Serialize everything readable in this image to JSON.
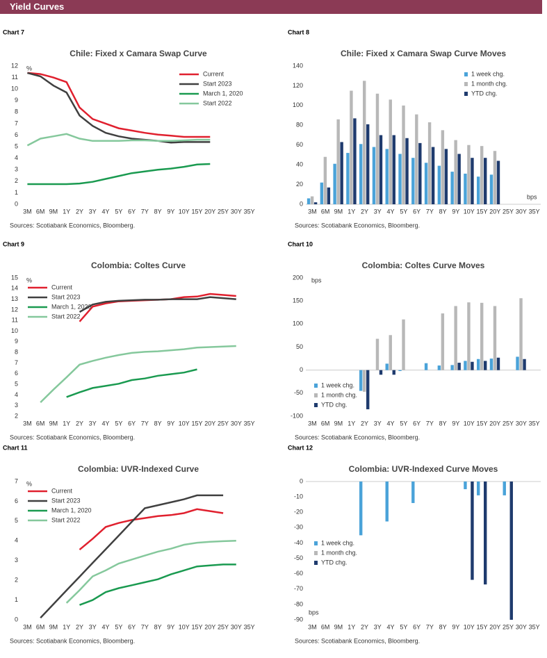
{
  "header": {
    "title": "Yield Curves"
  },
  "chart_data": [
    {
      "type": "line",
      "label": "Chart 7",
      "title": "Chile: Fixed x Camara Swap Curve",
      "source": "Sources: Scotiabank Economics, Bloomberg.",
      "unit": "%",
      "unit_position": "upper left",
      "legend": "upper right",
      "categories": [
        "3M",
        "6M",
        "9M",
        "1Y",
        "2Y",
        "3Y",
        "4Y",
        "5Y",
        "6Y",
        "7Y",
        "8Y",
        "9Y",
        "10Y",
        "15Y",
        "20Y",
        "25Y",
        "30Y",
        "35Y"
      ],
      "ylim": [
        0,
        12
      ],
      "yticks": [
        0,
        1,
        2,
        3,
        4,
        5,
        6,
        7,
        8,
        9,
        10,
        11,
        12
      ],
      "series": [
        {
          "name": "Current",
          "color": "#e0202e",
          "values": [
            11.4,
            11.3,
            11.0,
            10.6,
            8.4,
            7.4,
            7.0,
            6.6,
            6.4,
            6.2,
            6.05,
            5.95,
            5.85,
            5.85,
            5.85,
            null,
            null,
            null
          ]
        },
        {
          "name": "Start 2023",
          "color": "#404040",
          "values": [
            11.4,
            11.1,
            10.3,
            9.7,
            7.7,
            6.8,
            6.2,
            5.9,
            5.7,
            5.6,
            5.5,
            5.35,
            5.4,
            5.4,
            5.4,
            null,
            null,
            null
          ]
        },
        {
          "name": "March 1, 2020",
          "color": "#1a9a50",
          "values": [
            1.75,
            1.75,
            1.75,
            1.75,
            1.8,
            1.95,
            2.2,
            2.45,
            2.7,
            2.85,
            3.0,
            3.1,
            3.25,
            3.45,
            3.5,
            null,
            null,
            null
          ]
        },
        {
          "name": "Start 2022",
          "color": "#85c89c",
          "values": [
            5.1,
            5.7,
            5.9,
            6.1,
            5.7,
            5.5,
            5.5,
            5.5,
            5.55,
            5.55,
            5.5,
            5.5,
            5.55,
            5.6,
            5.6,
            null,
            null,
            null
          ]
        }
      ]
    },
    {
      "type": "bar",
      "label": "Chart 8",
      "title": "Chile: Fixed x Camara Swap Curve Moves",
      "source": "Sources: Scotiabank Economics, Bloomberg.",
      "unit": "bps",
      "unit_position": "lower right",
      "legend": "upper right",
      "categories": [
        "3M",
        "6M",
        "9M",
        "1Y",
        "2Y",
        "3Y",
        "4Y",
        "5Y",
        "6Y",
        "7Y",
        "8Y",
        "9Y",
        "10Y",
        "15Y",
        "20Y",
        "25Y",
        "30Y",
        "35Y"
      ],
      "ylim": [
        0,
        140
      ],
      "yticks": [
        0,
        20,
        40,
        60,
        80,
        100,
        120,
        140
      ],
      "series": [
        {
          "name": "1 week chg.",
          "color": "#4aa3d9",
          "values": [
            6,
            22,
            41,
            52,
            61,
            58,
            56,
            51,
            47,
            42,
            39,
            33,
            31,
            28,
            30,
            null,
            null,
            null
          ]
        },
        {
          "name": "1 month chg.",
          "color": "#b8b8b8",
          "values": [
            8,
            48,
            86,
            115,
            125,
            112,
            106,
            100,
            91,
            83,
            75,
            65,
            60,
            59,
            54,
            null,
            null,
            null
          ]
        },
        {
          "name": "YTD chg.",
          "color": "#1f3b6e",
          "values": [
            2,
            17,
            63,
            87,
            81,
            70,
            70,
            67,
            62,
            58,
            56,
            51,
            47,
            47,
            44,
            null,
            null,
            null
          ]
        }
      ]
    },
    {
      "type": "line",
      "label": "Chart 9",
      "title": "Colombia: Coltes Curve",
      "source": "Sources: Scotiabank Economics, Bloomberg.",
      "unit": "%",
      "unit_position": "upper left",
      "legend": "upper left",
      "categories": [
        "3M",
        "6M",
        "9M",
        "1Y",
        "2Y",
        "3Y",
        "4Y",
        "5Y",
        "6Y",
        "7Y",
        "8Y",
        "9Y",
        "10Y",
        "15Y",
        "20Y",
        "25Y",
        "30Y",
        "35Y"
      ],
      "ylim": [
        2,
        15
      ],
      "yticks": [
        2,
        3,
        4,
        5,
        6,
        7,
        8,
        9,
        10,
        11,
        12,
        13,
        14,
        15
      ],
      "series": [
        {
          "name": "Current",
          "color": "#e0202e",
          "values": [
            null,
            null,
            null,
            null,
            10.9,
            12.3,
            12.6,
            12.8,
            12.85,
            12.9,
            12.95,
            13.0,
            13.2,
            13.25,
            13.5,
            13.4,
            13.3,
            null
          ]
        },
        {
          "name": "Start 2023",
          "color": "#404040",
          "values": [
            null,
            null,
            null,
            null,
            11.8,
            12.5,
            12.75,
            12.85,
            12.9,
            12.95,
            12.95,
            13.0,
            13.0,
            13.0,
            13.2,
            13.1,
            13.0,
            null
          ]
        },
        {
          "name": "March 1, 2020",
          "color": "#1a9a50",
          "values": [
            null,
            null,
            null,
            3.8,
            4.25,
            4.65,
            4.85,
            5.05,
            5.4,
            5.55,
            5.8,
            5.95,
            6.1,
            6.4,
            null,
            null,
            null,
            null
          ]
        },
        {
          "name": "Start 2022",
          "color": "#85c89c",
          "values": [
            null,
            3.3,
            4.5,
            5.65,
            6.85,
            7.2,
            7.5,
            7.75,
            7.95,
            8.05,
            8.1,
            8.2,
            8.3,
            8.45,
            8.5,
            8.55,
            8.6,
            null
          ]
        }
      ]
    },
    {
      "type": "bar",
      "label": "Chart 10",
      "title": "Colombia: Coltes Curve Moves",
      "source": "Sources: Scotiabank Economics, Bloomberg.",
      "unit": "bps",
      "unit_position": "upper left",
      "legend": "lower left",
      "categories": [
        "3M",
        "6M",
        "9M",
        "1Y",
        "2Y",
        "3Y",
        "4Y",
        "5Y",
        "6Y",
        "7Y",
        "8Y",
        "9Y",
        "10Y",
        "15Y",
        "20Y",
        "25Y",
        "30Y",
        "35Y"
      ],
      "ylim": [
        -100,
        200
      ],
      "yticks": [
        -100,
        -50,
        0,
        50,
        100,
        150,
        200
      ],
      "series": [
        {
          "name": "1 week chg.",
          "color": "#4aa3d9",
          "values": [
            null,
            null,
            null,
            null,
            -45,
            null,
            14,
            -2,
            null,
            15,
            10,
            11,
            20,
            24,
            25,
            null,
            29,
            null
          ]
        },
        {
          "name": "1 month chg.",
          "color": "#b8b8b8",
          "values": [
            null,
            null,
            null,
            null,
            -47,
            68,
            76,
            110,
            null,
            null,
            123,
            139,
            147,
            146,
            139,
            null,
            156,
            null
          ]
        },
        {
          "name": "YTD chg.",
          "color": "#1f3b6e",
          "values": [
            null,
            null,
            null,
            null,
            -85,
            -10,
            -10,
            null,
            null,
            null,
            null,
            16,
            18,
            20,
            27,
            null,
            24,
            null
          ]
        }
      ]
    },
    {
      "type": "line",
      "label": "Chart 11",
      "title": "Colombia: UVR-Indexed Curve",
      "source": "Sources: Scotiabank Economics, Bloomberg.",
      "unit": "%",
      "unit_position": "upper left",
      "legend": "upper left",
      "categories": [
        "3M",
        "6M",
        "9M",
        "1Y",
        "2Y",
        "3Y",
        "4Y",
        "5Y",
        "6Y",
        "7Y",
        "8Y",
        "9Y",
        "10Y",
        "15Y",
        "20Y",
        "25Y",
        "30Y",
        "35Y"
      ],
      "ylim": [
        0,
        7
      ],
      "yticks": [
        0,
        1,
        2,
        3,
        4,
        5,
        6,
        7
      ],
      "series": [
        {
          "name": "Current",
          "color": "#e0202e",
          "values": [
            null,
            null,
            null,
            null,
            3.55,
            4.1,
            4.7,
            4.9,
            5.05,
            5.15,
            5.25,
            5.3,
            5.4,
            5.6,
            5.5,
            5.4,
            null,
            null
          ]
        },
        {
          "name": "Start 2023",
          "color": "#404040",
          "values": [
            null,
            0.1,
            0.79,
            1.49,
            2.18,
            2.88,
            3.57,
            4.26,
            4.96,
            5.65,
            5.8,
            5.95,
            6.1,
            6.3,
            6.3,
            6.3,
            null,
            null
          ]
        },
        {
          "name": "March 1, 2020",
          "color": "#1a9a50",
          "values": [
            null,
            null,
            null,
            null,
            0.75,
            1.0,
            1.4,
            1.6,
            1.75,
            1.9,
            2.05,
            2.3,
            2.5,
            2.7,
            2.75,
            2.8,
            2.8,
            null
          ]
        },
        {
          "name": "Start 2022",
          "color": "#85c89c",
          "values": [
            null,
            null,
            null,
            0.85,
            1.5,
            2.2,
            2.5,
            2.85,
            3.05,
            3.25,
            3.45,
            3.6,
            3.8,
            3.9,
            3.95,
            3.98,
            4.0,
            null
          ]
        }
      ]
    },
    {
      "type": "bar",
      "label": "Chart 12",
      "title": "Colombia: UVR-Indexed Curve Moves",
      "source": "Sources: Scotiabank Economics, Bloomberg.",
      "unit": "bps",
      "unit_position": "lower left",
      "legend": "lower left",
      "categories": [
        "3M",
        "6M",
        "9M",
        "1Y",
        "2Y",
        "3Y",
        "4Y",
        "5Y",
        "6Y",
        "7Y",
        "8Y",
        "9Y",
        "10Y",
        "15Y",
        "20Y",
        "25Y",
        "30Y",
        "35Y"
      ],
      "ylim": [
        -90,
        0
      ],
      "yticks": [
        0,
        -10,
        -20,
        -30,
        -40,
        -50,
        -60,
        -70,
        -80,
        -90
      ],
      "series": [
        {
          "name": "1 week chg.",
          "color": "#4aa3d9",
          "values": [
            null,
            null,
            null,
            null,
            -35,
            null,
            -26,
            null,
            -14,
            null,
            null,
            null,
            -5,
            -9,
            null,
            -9,
            null,
            null
          ]
        },
        {
          "name": "1 month chg.",
          "color": "#b8b8b8",
          "values": [
            null,
            null,
            null,
            null,
            null,
            null,
            null,
            null,
            null,
            null,
            null,
            null,
            null,
            null,
            null,
            null,
            null,
            null
          ]
        },
        {
          "name": "YTD chg.",
          "color": "#1f3b6e",
          "values": [
            null,
            null,
            null,
            null,
            null,
            null,
            null,
            null,
            null,
            null,
            null,
            null,
            -64,
            -67,
            null,
            -90,
            null,
            null
          ]
        }
      ]
    }
  ]
}
